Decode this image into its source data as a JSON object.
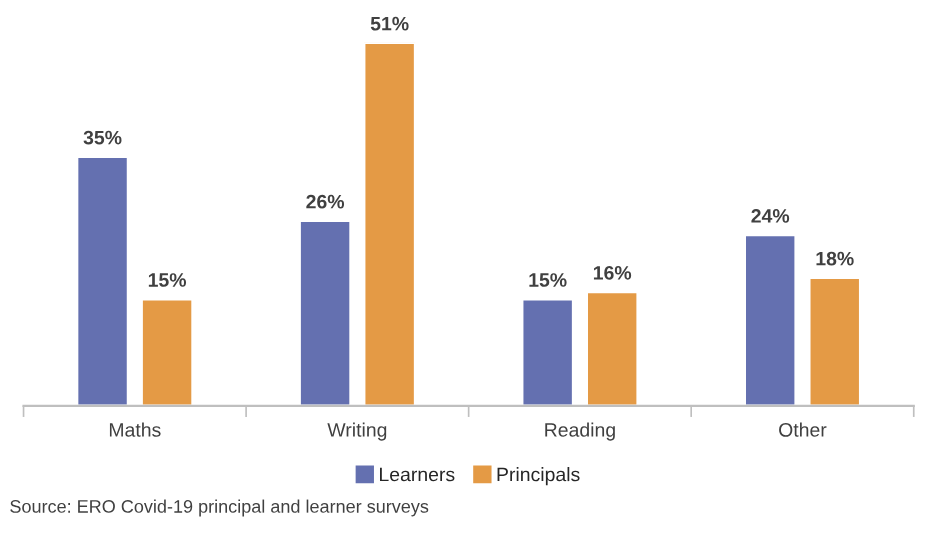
{
  "chart_data": {
    "type": "bar",
    "categories": [
      "Maths",
      "Writing",
      "Reading",
      "Other"
    ],
    "series": [
      {
        "name": "Learners",
        "color": "#6470b0",
        "values": [
          35,
          26,
          15,
          24
        ],
        "value_labels": [
          "35%",
          "26%",
          "15%",
          "24%"
        ]
      },
      {
        "name": "Principals",
        "color": "#e49a45",
        "values": [
          15,
          51,
          16,
          18
        ],
        "value_labels": [
          "15%",
          "51%",
          "16%",
          "18%"
        ]
      }
    ],
    "legend": "bottom",
    "grid": false,
    "annotations": [
      "Source: ERO Covid-19 principal and learner surveys"
    ]
  }
}
